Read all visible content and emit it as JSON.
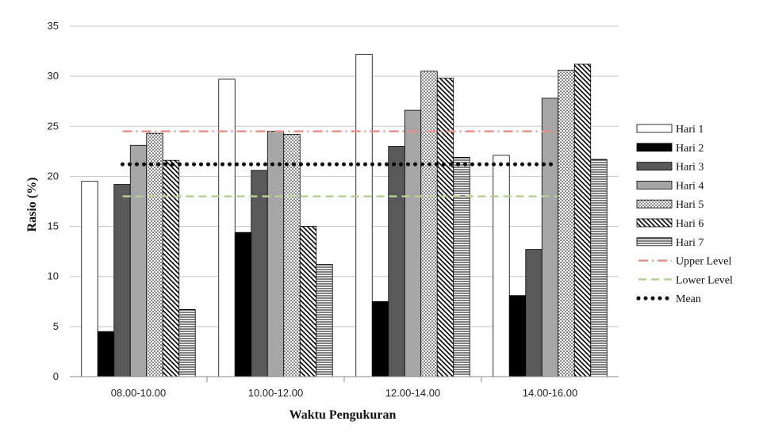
{
  "chart_data": {
    "type": "bar",
    "title": "",
    "xlabel": "Waktu Pengukuran",
    "ylabel": "Rasio (%)",
    "ylim": [
      0,
      35
    ],
    "yticks": [
      0,
      5,
      10,
      15,
      20,
      25,
      30,
      35
    ],
    "grid": "horizontal",
    "legend_position": "right",
    "categories": [
      "08.00-10.00",
      "10.00-12.00",
      "12.00-14.00",
      "14.00-16.00"
    ],
    "series": [
      {
        "name": "Hari 1",
        "values": [
          19.5,
          29.7,
          32.2,
          22.1
        ],
        "style": "white",
        "color": "#ffffff"
      },
      {
        "name": "Hari 2",
        "values": [
          4.5,
          14.4,
          7.5,
          8.1
        ],
        "style": "black",
        "color": "#000000"
      },
      {
        "name": "Hari 3",
        "values": [
          19.2,
          20.6,
          23.0,
          12.7
        ],
        "style": "darkgray",
        "color": "#595959"
      },
      {
        "name": "Hari 4",
        "values": [
          23.1,
          24.5,
          26.6,
          27.8
        ],
        "style": "lightgray",
        "color": "#a6a6a6"
      },
      {
        "name": "Hari 5",
        "values": [
          24.3,
          24.2,
          30.5,
          30.6
        ],
        "style": "dots",
        "color": "#ffffff"
      },
      {
        "name": "Hari 6",
        "values": [
          21.6,
          15.0,
          29.8,
          31.2
        ],
        "style": "diagonal",
        "color": "#ffffff"
      },
      {
        "name": "Hari 7",
        "values": [
          6.7,
          11.2,
          21.9,
          21.7
        ],
        "style": "horizontal",
        "color": "#ffffff"
      }
    ],
    "reference_lines": [
      {
        "name": "Upper Level",
        "value": 24.5,
        "style": "dashdot",
        "color": "#e6928c"
      },
      {
        "name": "Lower Level",
        "value": 18.0,
        "style": "dash",
        "color": "#b5cf94"
      },
      {
        "name": "Mean",
        "value": 21.2,
        "style": "dot",
        "color": "#000000"
      }
    ]
  }
}
